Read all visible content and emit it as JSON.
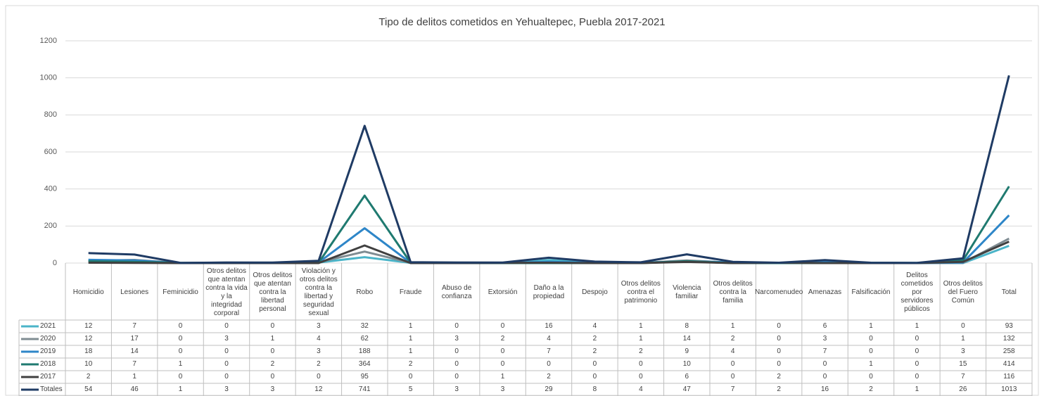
{
  "chart_data": {
    "type": "line",
    "title": "Tipo de delitos cometidos en Yehualtepec, Puebla 2017-2021",
    "categories": [
      "Homicidio",
      "Lesiones",
      "Feminicidio",
      "Otros delitos que atentan contra la vida y la integridad corporal",
      "Otros delitos que atentan contra la libertad personal",
      "Violación y otros delitos contra la libertad y seguridad sexual",
      "Robo",
      "Fraude",
      "Abuso de confianza",
      "Extorsión",
      "Daño a la propiedad",
      "Despojo",
      "Otros delitos contra el patrimonio",
      "Violencia familiar",
      "Otros delitos contra la familia",
      "Narcomenudeo",
      "Amenazas",
      "Falsificación",
      "Delitos cometidos por servidores públicos",
      "Otros delitos del Fuero Común",
      "Total"
    ],
    "series": [
      {
        "name": "2021",
        "color": "#4bb4c8",
        "values": [
          12,
          7,
          0,
          0,
          0,
          3,
          32,
          1,
          0,
          0,
          16,
          4,
          1,
          8,
          1,
          0,
          6,
          1,
          1,
          0,
          93
        ]
      },
      {
        "name": "2020",
        "color": "#7f8c92",
        "values": [
          12,
          17,
          0,
          3,
          1,
          4,
          62,
          1,
          3,
          2,
          4,
          2,
          1,
          14,
          2,
          0,
          3,
          0,
          0,
          1,
          132
        ]
      },
      {
        "name": "2019",
        "color": "#2e86c8",
        "values": [
          18,
          14,
          0,
          0,
          0,
          3,
          188,
          1,
          0,
          0,
          7,
          2,
          2,
          9,
          4,
          0,
          7,
          0,
          0,
          3,
          258
        ]
      },
      {
        "name": "2018",
        "color": "#1f7a70",
        "values": [
          10,
          7,
          1,
          0,
          2,
          2,
          364,
          2,
          0,
          0,
          0,
          0,
          0,
          10,
          0,
          0,
          0,
          1,
          0,
          15,
          414
        ]
      },
      {
        "name": "2017",
        "color": "#404040",
        "values": [
          2,
          1,
          0,
          0,
          0,
          0,
          95,
          0,
          0,
          1,
          2,
          0,
          0,
          6,
          0,
          2,
          0,
          0,
          0,
          7,
          116
        ]
      },
      {
        "name": "Totales",
        "color": "#1f3b64",
        "values": [
          54,
          46,
          1,
          3,
          3,
          12,
          741,
          5,
          3,
          3,
          29,
          8,
          4,
          47,
          7,
          2,
          16,
          2,
          1,
          26,
          1013
        ]
      }
    ],
    "ylim": [
      0,
      1200
    ],
    "yticks": [
      0,
      200,
      400,
      600,
      800,
      1000,
      1200
    ],
    "grid": true
  }
}
